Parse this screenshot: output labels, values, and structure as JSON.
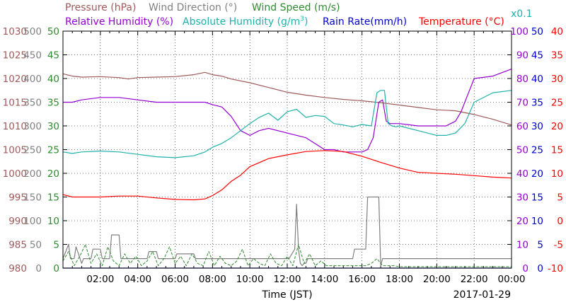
{
  "chart_data": {
    "type": "line",
    "xlabel": "Time (JST)",
    "date": "2017-01-29",
    "x_ticks": [
      "02:00",
      "04:00",
      "06:00",
      "08:00",
      "10:00",
      "12:00",
      "14:00",
      "16:00",
      "18:00",
      "20:00",
      "22:00",
      "00:00"
    ],
    "x_range_hours": [
      0,
      24
    ],
    "grid": true,
    "legend": {
      "row1": [
        {
          "label": "Pressure (hPa)",
          "color": "#a05a5a"
        },
        {
          "label": "Wind Direction (°)",
          "color": "#808080"
        },
        {
          "label": "Wind Speed (m/s)",
          "color": "#2e8b2e"
        }
      ],
      "row2": [
        {
          "label": "Relative Humidity (%)",
          "color": "#9400d3"
        },
        {
          "label": "Absolute Humidity (g/m",
          "sup": "3",
          "tail": ")",
          "color": "#20b2aa"
        },
        {
          "label": "Rain Rate(mm/h)",
          "color": "#0000cd"
        },
        {
          "label": "Temperature (°C)",
          "color": "#ff0000"
        }
      ],
      "scale_note": {
        "label": "x0.1",
        "color": "#20b2aa"
      }
    },
    "axes": {
      "pressure": {
        "color": "#a05a5a",
        "range": [
          980,
          1030
        ],
        "ticks": [
          "1030",
          "1025",
          "1020",
          "1015",
          "1010",
          "1005",
          "1000",
          "995",
          "990",
          "985",
          "980"
        ]
      },
      "wind_direction": {
        "color": "#808080",
        "range": [
          0,
          500
        ],
        "ticks": [
          "500",
          "450",
          "400",
          "350",
          "300",
          "250",
          "200",
          "150",
          "100",
          "50",
          "0"
        ]
      },
      "wind_speed": {
        "color": "#2e8b2e",
        "range": [
          0,
          50
        ],
        "ticks": [
          "50",
          "45",
          "40",
          "35",
          "30",
          "25",
          "20",
          "15",
          "10",
          "5",
          "0"
        ]
      },
      "relative_humidity": {
        "color": "#9400d3",
        "range": [
          0,
          100
        ],
        "ticks": [
          "100",
          "90",
          "80",
          "70",
          "60",
          "50",
          "40",
          "30",
          "20",
          "10",
          "0"
        ]
      },
      "rain_rate": {
        "color": "#0000cd",
        "range": [
          0,
          50
        ],
        "ticks": [
          "50",
          "45",
          "40",
          "35",
          "30",
          "25",
          "20",
          "15",
          "10",
          "5",
          "0"
        ]
      },
      "temperature": {
        "color": "#ff0000",
        "range": [
          -10,
          40
        ],
        "ticks": [
          "40",
          "35",
          "30",
          "25",
          "20",
          "15",
          "10",
          "5",
          "0",
          "-5",
          "-10"
        ]
      }
    },
    "series": [
      {
        "name": "Pressure (hPa)",
        "axis": "pressure",
        "color": "#a05a5a",
        "style": "solid",
        "x": [
          0,
          0.5,
          1,
          2,
          3,
          3.5,
          4,
          5,
          6,
          7,
          7.6,
          8,
          8.5,
          9,
          10,
          11,
          12,
          13,
          14,
          15,
          16,
          17,
          18,
          19,
          20,
          21,
          22,
          23,
          24
        ],
        "y": [
          1021.0,
          1020.5,
          1020.3,
          1020.4,
          1020.2,
          1019.9,
          1020.2,
          1020.3,
          1020.4,
          1020.8,
          1021.3,
          1020.8,
          1020.5,
          1019.9,
          1019.1,
          1018.1,
          1017.1,
          1016.5,
          1016.0,
          1015.6,
          1015.3,
          1014.9,
          1014.4,
          1013.9,
          1013.4,
          1013.2,
          1012.4,
          1011.4,
          1010.2
        ]
      },
      {
        "name": "Wind Direction (°)",
        "axis": "wind_direction",
        "color": "#808080",
        "style": "solid",
        "x": [
          0,
          0.3,
          0.4,
          0.6,
          0.7,
          1.0,
          1.1,
          1.5,
          1.6,
          2.0,
          2.1,
          2.5,
          2.6,
          3.0,
          3.1,
          4.5,
          4.6,
          5.0,
          5.1,
          6.0,
          6.1,
          7.0,
          7.1,
          8.0,
          8.1,
          9.0,
          9.1,
          10.0,
          10.1,
          11.0,
          11.1,
          12.0,
          12.1,
          12.4,
          12.5,
          12.6,
          12.7,
          12.8,
          12.9,
          13.0,
          13.1,
          14.0,
          14.1,
          15.0,
          15.1,
          15.5,
          15.6,
          16.0,
          16.1,
          16.2,
          16.3,
          16.8,
          16.9,
          17.0,
          17.1,
          24
        ],
        "y": [
          20,
          50,
          20,
          20,
          45,
          10,
          20,
          20,
          40,
          40,
          20,
          20,
          70,
          70,
          20,
          20,
          35,
          35,
          20,
          20,
          30,
          30,
          20,
          20,
          20,
          20,
          20,
          20,
          20,
          20,
          20,
          20,
          20,
          40,
          135,
          40,
          10,
          5,
          10,
          10,
          20,
          20,
          20,
          20,
          20,
          20,
          40,
          40,
          40,
          40,
          150,
          150,
          150,
          5,
          20,
          20
        ]
      },
      {
        "name": "Wind Speed (m/s)",
        "axis": "wind_speed",
        "color": "#2e8b2e",
        "style": "dashed",
        "x": [
          0,
          0.3,
          0.6,
          0.9,
          1.2,
          1.5,
          1.8,
          2.1,
          2.4,
          2.7,
          3.0,
          3.3,
          3.6,
          3.9,
          4.2,
          4.5,
          4.8,
          5.1,
          5.4,
          5.7,
          6.0,
          6.3,
          6.6,
          6.9,
          7.2,
          7.5,
          7.8,
          8.1,
          8.4,
          8.7,
          9.0,
          9.3,
          9.6,
          9.9,
          10.2,
          10.5,
          10.8,
          11.1,
          11.4,
          11.7,
          12.0,
          12.3,
          12.6,
          12.9,
          13.2,
          13.5,
          13.8,
          14.1,
          14.4,
          14.7,
          15.0,
          15.3,
          15.6,
          15.9,
          16.2,
          16.5,
          16.8,
          17.1,
          17.4,
          17.7,
          18.0,
          19,
          20,
          21,
          22,
          23,
          24
        ],
        "y": [
          1.5,
          3.5,
          0.5,
          2.5,
          5,
          1,
          3,
          0.5,
          4.5,
          1.5,
          0.5,
          3,
          1,
          2.5,
          0.5,
          1.5,
          3.5,
          0.5,
          2,
          4.5,
          1,
          2.5,
          0.5,
          3,
          1,
          0.5,
          3.5,
          0.5,
          2.5,
          1,
          0.5,
          1.5,
          4,
          0.5,
          2,
          1,
          0.5,
          3,
          1,
          0.5,
          2.5,
          0.5,
          5,
          1,
          3,
          0.5,
          1.5,
          0.5,
          0.5,
          0.5,
          0.5,
          0.5,
          0.5,
          0.5,
          0.5,
          1,
          2,
          0.5,
          0.5,
          0.5,
          0.3,
          0.3,
          0.3,
          0.3,
          0.3,
          0.3,
          0.3
        ]
      },
      {
        "name": "Relative Humidity (%)",
        "axis": "relative_humidity",
        "color": "#9400d3",
        "style": "solid",
        "x": [
          0,
          0.5,
          1,
          2,
          3,
          4,
          5,
          6,
          7,
          7.6,
          8,
          8.5,
          9,
          9.5,
          10,
          10.5,
          11,
          12,
          13,
          14,
          14.5,
          15,
          15.5,
          16,
          16.3,
          16.6,
          16.9,
          17.1,
          17.3,
          17.5,
          18,
          19,
          20,
          20.5,
          21,
          21.3,
          21.6,
          22,
          23,
          24
        ],
        "y": [
          70,
          70,
          71,
          72,
          72,
          71,
          70,
          70,
          70,
          70,
          69,
          68,
          64,
          58,
          56,
          58,
          59,
          57,
          55,
          50,
          50,
          49,
          49,
          49,
          50,
          55,
          70,
          71,
          62,
          61,
          61,
          60,
          60,
          60,
          62,
          66,
          72,
          80,
          81,
          84
        ]
      },
      {
        "name": "Absolute Humidity (g/m3)",
        "axis": "wind_direction",
        "color": "#20b2aa",
        "style": "solid",
        "x": [
          0,
          0.5,
          1,
          2,
          3,
          4,
          5,
          6,
          7,
          7.6,
          8,
          8.5,
          9,
          9.5,
          10,
          10.5,
          11,
          11.5,
          12,
          12.5,
          13,
          13.5,
          14,
          14.5,
          15,
          15.5,
          16,
          16.5,
          16.8,
          17.0,
          17.2,
          17.4,
          17.6,
          17.8,
          18,
          19,
          20,
          20.5,
          21,
          21.5,
          22,
          23,
          24
        ],
        "y": [
          245,
          242,
          245,
          247,
          245,
          240,
          235,
          233,
          237,
          245,
          255,
          263,
          275,
          290,
          305,
          318,
          327,
          312,
          330,
          335,
          318,
          322,
          320,
          305,
          302,
          298,
          303,
          300,
          370,
          375,
          375,
          305,
          300,
          298,
          300,
          290,
          280,
          280,
          285,
          305,
          350,
          370,
          375
        ]
      },
      {
        "name": "Temperature (°C)",
        "axis": "temperature",
        "color": "#ff0000",
        "style": "solid",
        "x": [
          0,
          0.5,
          1,
          2,
          3,
          4,
          5,
          6,
          7,
          7.6,
          8,
          8.5,
          9,
          9.5,
          10,
          11,
          12,
          13,
          14,
          15,
          16,
          17,
          18,
          19,
          20,
          21,
          22,
          23,
          24
        ],
        "y": [
          5.5,
          5,
          5,
          5,
          5.2,
          5.2,
          4.8,
          4.5,
          4.4,
          4.6,
          5.3,
          6.5,
          8.3,
          9.6,
          11.4,
          13.1,
          13.9,
          14.6,
          14.8,
          14.6,
          13.6,
          12.3,
          11.1,
          10.2,
          10,
          9.8,
          9.5,
          9.2,
          9.0
        ]
      },
      {
        "name": "Rain Rate(mm/h)",
        "axis": "rain_rate",
        "color": "#0000cd",
        "style": "solid",
        "x": [
          0,
          24
        ],
        "y": [
          0,
          0
        ]
      }
    ]
  }
}
